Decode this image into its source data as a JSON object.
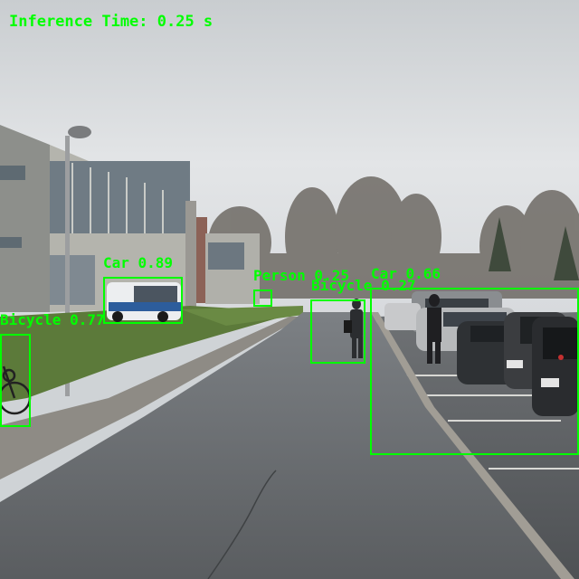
{
  "inference_text": "Inference Time: 0.25 s",
  "detections": [
    {
      "label": "Car 0.89"
    },
    {
      "label": "Bicycle 0.77"
    },
    {
      "label": "Person 0.25"
    },
    {
      "label": "Bicycle 0.27"
    },
    {
      "label": "Car 0.66"
    }
  ],
  "colors": {
    "box": "#00ff00",
    "sky": "#dcdfe1",
    "grass": "#5f7a3c",
    "road": "#6a6d70"
  }
}
